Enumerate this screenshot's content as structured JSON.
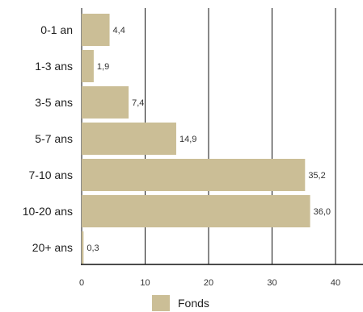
{
  "chart_data": {
    "type": "bar",
    "orientation": "horizontal",
    "categories": [
      "0-1 an",
      "1-3 ans",
      "3-5 ans",
      "5-7 ans",
      "7-10 ans",
      "10-20 ans",
      "20+ ans"
    ],
    "series": [
      {
        "name": "Fonds",
        "values": [
          4.4,
          1.9,
          7.4,
          14.9,
          35.2,
          36.0,
          0.3
        ],
        "value_labels": [
          "4,4",
          "1,9",
          "7,4",
          "14,9",
          "35,2",
          "36,0",
          "0,3"
        ],
        "color": "#cbbe96"
      }
    ],
    "xlim": [
      0,
      45
    ],
    "x_ticks": [
      0,
      10,
      20,
      30,
      40
    ],
    "x_tick_labels": [
      "0",
      "10",
      "20",
      "30",
      "40"
    ],
    "grid": true,
    "legend": {
      "placement": "bottom"
    },
    "title": "",
    "xlabel": "",
    "ylabel": ""
  }
}
